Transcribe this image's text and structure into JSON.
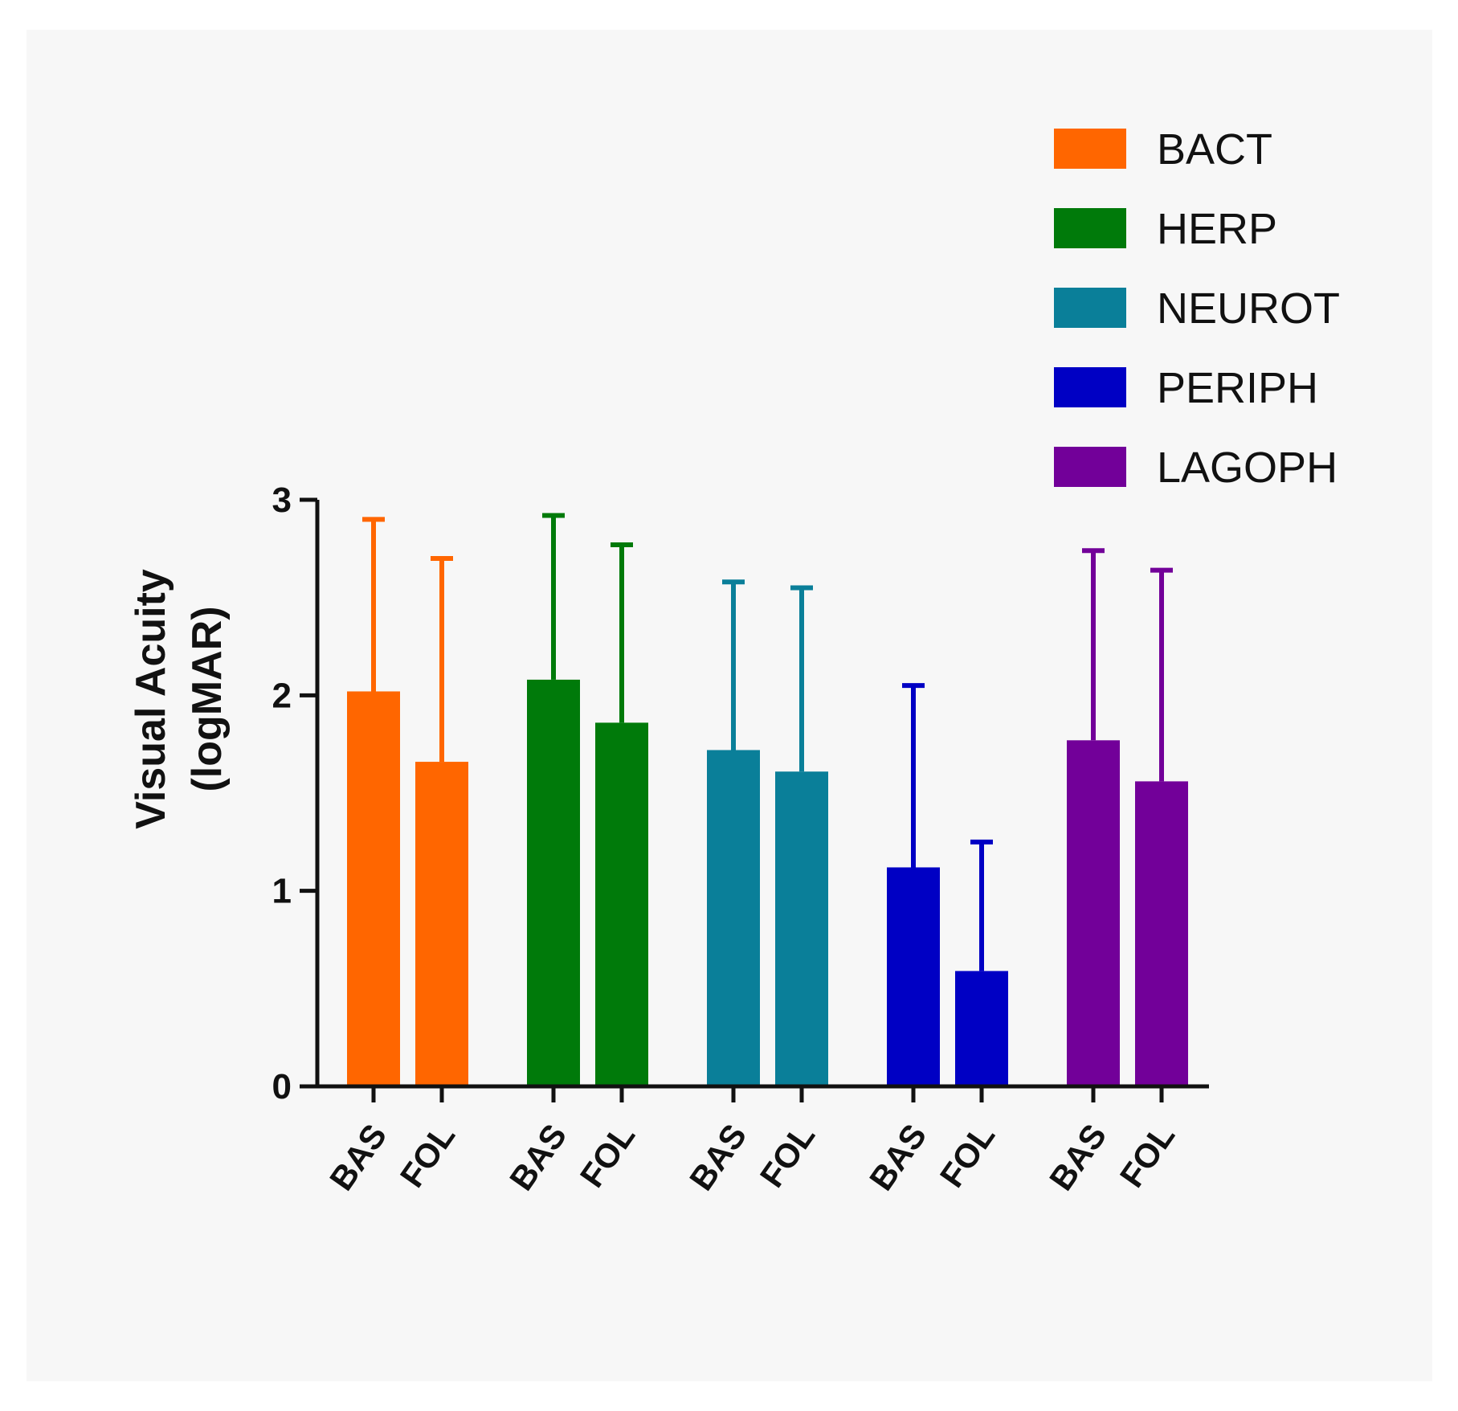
{
  "chart_data": {
    "type": "bar",
    "title": "",
    "xlabel": "",
    "ylabel_lines": [
      "Visual Acuity",
      "(logMAR)"
    ],
    "ylim": [
      0,
      3
    ],
    "yticks": [
      0,
      1,
      2,
      3
    ],
    "categories": [
      "BAS",
      "FOL"
    ],
    "series": [
      {
        "name": "BACT",
        "color": "#ff6600",
        "values": [
          2.02,
          1.66
        ],
        "error_upper": [
          2.9,
          2.7
        ]
      },
      {
        "name": "HERP",
        "color": "#007a0a",
        "values": [
          2.08,
          1.86
        ],
        "error_upper": [
          2.92,
          2.77
        ]
      },
      {
        "name": "NEUROT",
        "color": "#0a7f99",
        "values": [
          1.72,
          1.61
        ],
        "error_upper": [
          2.58,
          2.55
        ]
      },
      {
        "name": "PERIPH",
        "color": "#0000c4",
        "values": [
          1.12,
          0.59
        ],
        "error_upper": [
          2.05,
          1.25
        ]
      },
      {
        "name": "LAGOPH",
        "color": "#720099",
        "values": [
          1.77,
          1.56
        ],
        "error_upper": [
          2.74,
          2.64
        ]
      }
    ],
    "legend_position": "top-right",
    "grid": false,
    "background_color": "#f7f7f7",
    "axis_color": "#111111"
  }
}
